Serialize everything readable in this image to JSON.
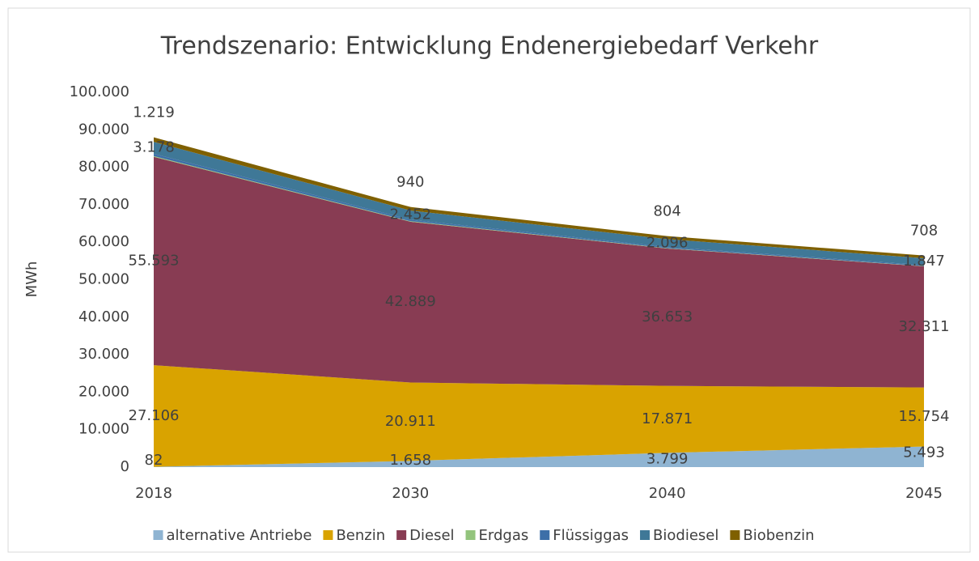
{
  "chart_data": {
    "type": "stacked_area",
    "title": "Trendszenario: Entwicklung Endenergiebedarf Verkehr",
    "y_label": "MWh",
    "categories": [
      "2018",
      "2030",
      "2040",
      "2045"
    ],
    "ylim": [
      0,
      100000
    ],
    "yticks": [
      0,
      {
        "value": 10000,
        "label": "10.000"
      },
      {
        "value": 20000,
        "label": "20.000"
      },
      {
        "value": 30000,
        "label": "30.000"
      },
      {
        "value": 40000,
        "label": "40.000"
      },
      {
        "value": 50000,
        "label": "50.000"
      },
      {
        "value": 60000,
        "label": "60.000"
      },
      {
        "value": 70000,
        "label": "70.000"
      },
      {
        "value": 80000,
        "label": "80.000"
      },
      {
        "value": 90000,
        "label": "90.000"
      },
      {
        "value": 100000,
        "label": "100.000"
      }
    ],
    "legend": "bottom",
    "series": [
      {
        "name": "alternative Antriebe",
        "color": "#8fb4d2",
        "values": [
          82,
          1658,
          3799,
          5493
        ],
        "value_labels": [
          "82",
          "1.658",
          "3.799",
          "5.493"
        ]
      },
      {
        "name": "Benzin",
        "color": "#d9a300",
        "values": [
          27106,
          20911,
          17871,
          15754
        ],
        "value_labels": [
          "27.106",
          "20.911",
          "17.871",
          "15.754"
        ]
      },
      {
        "name": "Diesel",
        "color": "#883c53",
        "values": [
          55593,
          42889,
          36653,
          32311
        ],
        "value_labels": [
          "55.593",
          "42.889",
          "36.653",
          "32.311"
        ]
      },
      {
        "name": "Erdgas",
        "color": "#93c47d",
        "values": [
          200,
          150,
          100,
          80
        ]
      },
      {
        "name": "Flüssiggas",
        "color": "#3d6fa8",
        "values": [
          600,
          400,
          300,
          250
        ]
      },
      {
        "name": "Biodiesel",
        "color": "#3f7897",
        "values": [
          3178,
          2452,
          2096,
          1847
        ],
        "value_labels": [
          "3.178",
          "2.452",
          "2.096",
          "1.847"
        ]
      },
      {
        "name": "Biobenzin",
        "color": "#7f6000",
        "values": [
          1219,
          940,
          804,
          708
        ],
        "value_labels": [
          "1.219",
          "940",
          "804",
          "708"
        ]
      }
    ]
  }
}
